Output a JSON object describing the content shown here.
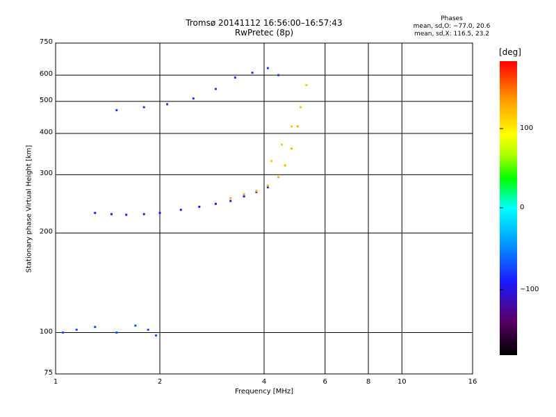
{
  "title": {
    "line1": "Tromsø 20141112 16:56:00–16:57:43",
    "line2": "RwPretec (8p)"
  },
  "phases": {
    "heading": "Phases",
    "line_o": "mean, sd,O: −77.0, 20.6",
    "line_x": "mean, sd,X: 116.5, 23.2"
  },
  "colorbar": {
    "label": "[deg]",
    "ticks": [
      "100",
      "0",
      "−100"
    ],
    "range": [
      -180,
      180
    ],
    "colors_top_to_bottom": [
      "#ff0000",
      "#ff9900",
      "#ffff00",
      "#00ff00",
      "#00ffff",
      "#0066ff",
      "#1a1aff",
      "#5a006a",
      "#000000"
    ]
  },
  "chart_data": {
    "type": "scatter",
    "title": "Tromsø 20141112 16:56:00–16:57:43",
    "subtitle": "RwPretec (8p)",
    "xlabel": "Frequency [MHz]",
    "ylabel": "Stationary phase Virtual Height [km]",
    "x_scale": "log",
    "y_scale": "log",
    "xlim": [
      1,
      16
    ],
    "ylim": [
      75,
      750
    ],
    "x_ticks": [
      1,
      2,
      4,
      6,
      8,
      10,
      16
    ],
    "x_tick_labels": [
      "1",
      "2",
      "4",
      "6",
      "8",
      "10",
      "16"
    ],
    "y_ticks": [
      75,
      100,
      200,
      300,
      400,
      500,
      600,
      750
    ],
    "y_tick_labels": [
      "75",
      "100",
      "200",
      "300",
      "400",
      "500",
      "600",
      "750"
    ],
    "grid": true,
    "color_encoding": "phase [deg]",
    "traces": [
      {
        "name_hint": "lower O trace",
        "phase": -100,
        "x": [
          1.3,
          1.45,
          1.6,
          1.8,
          2.0,
          2.3,
          2.6,
          2.9,
          3.2,
          3.5,
          3.8,
          4.1
        ],
        "y": [
          230,
          228,
          227,
          228,
          230,
          235,
          240,
          245,
          250,
          258,
          266,
          275
        ]
      },
      {
        "name_hint": "lower X trace",
        "phase": 130,
        "x": [
          3.2,
          3.5,
          3.8,
          4.1,
          4.4,
          4.6,
          4.8,
          5.0
        ],
        "y": [
          255,
          262,
          268,
          278,
          295,
          320,
          360,
          420
        ]
      },
      {
        "name_hint": "upper O trace",
        "phase": -90,
        "x": [
          1.5,
          1.8,
          2.1,
          2.5,
          2.9,
          3.3,
          3.7,
          4.1,
          4.4
        ],
        "y": [
          470,
          480,
          490,
          510,
          545,
          590,
          610,
          630,
          600
        ]
      },
      {
        "name_hint": "upper X trace",
        "phase": 120,
        "x": [
          4.2,
          4.5,
          4.8,
          5.1,
          5.3
        ],
        "y": [
          330,
          370,
          420,
          480,
          560
        ]
      },
      {
        "name_hint": "low echoes",
        "phase": -80,
        "x": [
          1.05,
          1.15,
          1.3,
          1.5,
          1.7,
          1.85,
          1.95
        ],
        "y": [
          100,
          102,
          104,
          100,
          105,
          102,
          98
        ]
      }
    ]
  }
}
